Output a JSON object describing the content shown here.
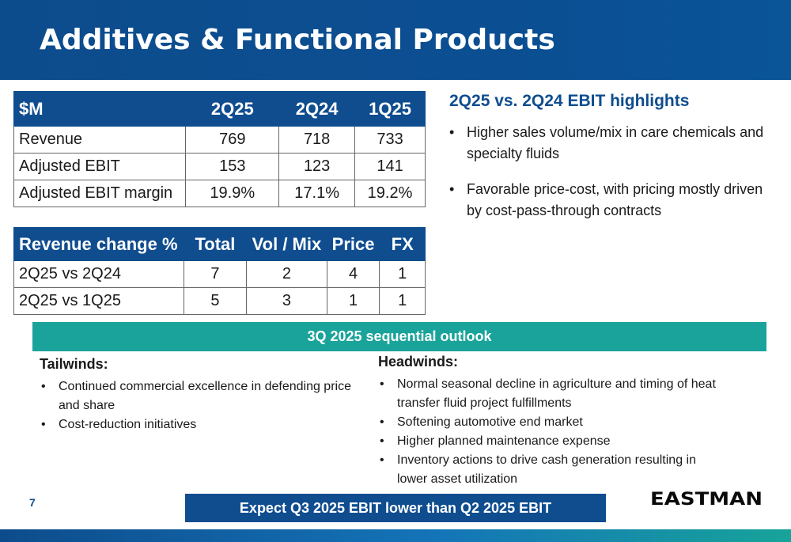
{
  "slide": {
    "title": "Additives & Functional Products",
    "page_number": "7"
  },
  "financials": {
    "headers": [
      "$M",
      "2Q25",
      "2Q24",
      "1Q25"
    ],
    "rows": [
      [
        "Revenue",
        "769",
        "718",
        "733"
      ],
      [
        "Adjusted EBIT",
        "153",
        "123",
        "141"
      ],
      [
        "Adjusted EBIT margin",
        "19.9%",
        "17.1%",
        "19.2%"
      ]
    ]
  },
  "revenue_change": {
    "headers": [
      "Revenue change %",
      "Total",
      "Vol / Mix",
      "Price",
      "FX"
    ],
    "rows": [
      [
        "2Q25 vs 2Q24",
        "7",
        "2",
        "4",
        "1"
      ],
      [
        "2Q25 vs 1Q25",
        "5",
        "3",
        "1",
        "1"
      ]
    ]
  },
  "highlights": {
    "title": "2Q25 vs. 2Q24 EBIT highlights",
    "items": [
      "Higher sales volume/mix in care chemicals and specialty fluids",
      "Favorable price-cost, with pricing mostly driven by cost-pass-through contracts"
    ]
  },
  "outlook": {
    "title": "3Q 2025 sequential outlook",
    "tailwinds": {
      "heading": "Tailwinds:",
      "items": [
        "Continued commercial excellence in defending price and share",
        "Cost-reduction initiatives"
      ]
    },
    "headwinds": {
      "heading": "Headwinds:",
      "items": [
        "Normal seasonal decline in agriculture and timing of heat transfer fluid project fulfillments",
        "Softening automotive end market",
        "Higher planned maintenance expense",
        "Inventory actions to drive cash generation resulting in lower asset utilization"
      ]
    }
  },
  "conclusion": "Expect Q3 2025 EBIT lower than Q2 2025 EBIT",
  "logo": {
    "text": "EASTMAN",
    "color": "#0a0a0a"
  },
  "colors": {
    "brand_blue": "#0f4d8f",
    "teal": "#1aa39a"
  },
  "bullet": "•"
}
